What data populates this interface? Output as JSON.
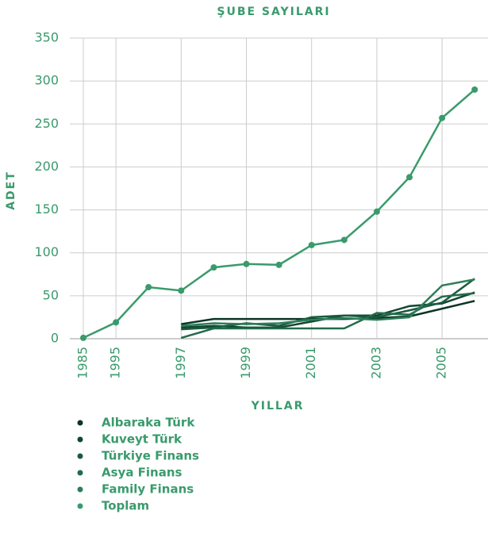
{
  "chart_data": {
    "type": "line",
    "title": "ŞUBE SAYILARI",
    "y_label": "ADET",
    "x_label": "YILLAR",
    "categories": [
      "1985",
      "1995",
      null,
      "1997",
      null,
      "1999",
      null,
      "2001",
      null,
      "2003",
      null,
      "2005",
      null
    ],
    "series": [
      {
        "name": "Albaraka Türk",
        "color": "#0b3526",
        "marker": false,
        "values": [
          null,
          null,
          null,
          17,
          23,
          23,
          23,
          23,
          23,
          24,
          26,
          35,
          44
        ]
      },
      {
        "name": "Kuveyt Türk",
        "color": "#124631",
        "marker": false,
        "values": [
          null,
          null,
          null,
          13,
          15,
          13,
          13,
          20,
          27,
          27,
          38,
          41,
          54
        ]
      },
      {
        "name": "Türkiye Finans",
        "color": "#1a5a3e",
        "marker": false,
        "values": [
          null,
          null,
          null,
          11,
          13,
          18,
          15,
          25,
          27,
          25,
          33,
          42,
          70
        ]
      },
      {
        "name": "Asya Finans",
        "color": "#226b4b",
        "marker": false,
        "values": [
          null,
          null,
          null,
          1,
          12,
          12,
          12,
          12,
          12,
          30,
          28,
          49,
          53
        ]
      },
      {
        "name": "Family Finans",
        "color": "#2c7f59",
        "marker": false,
        "values": [
          null,
          null,
          null,
          15,
          18,
          17,
          18,
          22,
          24,
          22,
          25,
          62,
          69
        ]
      },
      {
        "name": "Toplam",
        "color": "#3a9a6c",
        "marker": true,
        "values": [
          1,
          19,
          60,
          56,
          83,
          87,
          86,
          109,
          115,
          148,
          188,
          257,
          290
        ]
      }
    ],
    "ylim": [
      0,
      350
    ],
    "yticks": [
      0,
      50,
      100,
      150,
      200,
      250,
      300,
      350
    ],
    "grid": true,
    "legend": "bottom"
  }
}
